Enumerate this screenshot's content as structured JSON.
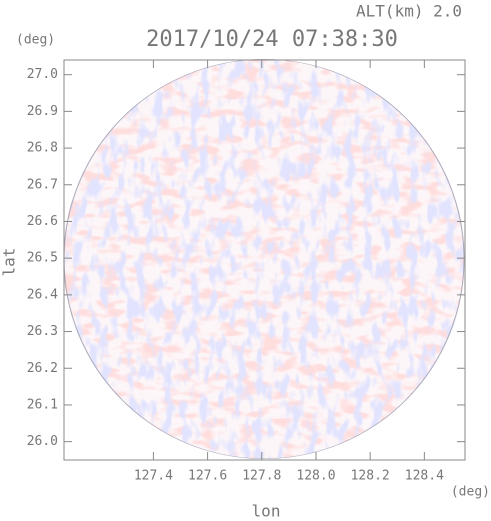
{
  "chart_data": {
    "type": "radar-ppi",
    "title": "2017/10/24 07:38:30",
    "annotation": "ALT(km) 2.0",
    "x_label": "lon",
    "y_label": "lat",
    "x_unit": "(deg)",
    "y_unit": "(deg)",
    "xlim": [
      127.07,
      128.55
    ],
    "ylim": [
      25.95,
      27.04
    ],
    "xticks": [
      127.4,
      127.6,
      127.8,
      {
        "value": 128,
        "label": "128.0"
      },
      128.2,
      128.4
    ],
    "yticks": [
      {
        "value": 26,
        "label": "26.0"
      },
      26.1,
      26.2,
      26.3,
      26.4,
      26.5,
      26.6,
      26.7,
      26.8,
      26.9,
      {
        "value": 27,
        "label": "27.0"
      }
    ]
  }
}
